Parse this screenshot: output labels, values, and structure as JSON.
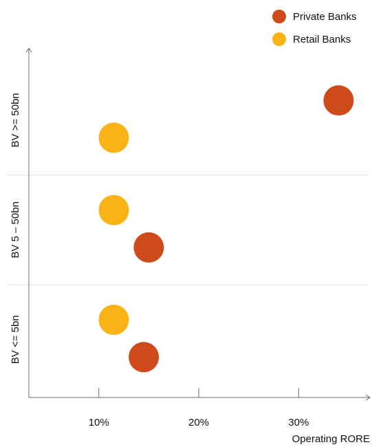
{
  "chart_data": {
    "type": "scatter",
    "title": "",
    "xlabel": "Operating RORE",
    "ylabel": "",
    "x_ticks": [
      {
        "value": 10,
        "label": "10%"
      },
      {
        "value": 20,
        "label": "20%"
      },
      {
        "value": 30,
        "label": "30%"
      }
    ],
    "xlim": [
      3,
      37
    ],
    "grid": false,
    "legend_position": "top-right",
    "bands": [
      {
        "label": "BV >= 50bn"
      },
      {
        "label": "BV 5 – 50bn"
      },
      {
        "label": "BV <= 5bn"
      }
    ],
    "series": [
      {
        "name": "Private Banks",
        "color": "#cf4a1a",
        "points": [
          {
            "x": 34,
            "band": "BV >= 50bn",
            "level": "upper"
          },
          {
            "x": 15,
            "band": "BV 5 – 50bn",
            "level": "lower"
          },
          {
            "x": 14.5,
            "band": "BV <= 5bn",
            "level": "lower"
          }
        ]
      },
      {
        "name": "Retail Banks",
        "color": "#f9b316",
        "points": [
          {
            "x": 11.5,
            "band": "BV >= 50bn",
            "level": "lower"
          },
          {
            "x": 11.5,
            "band": "BV 5 – 50bn",
            "level": "upper"
          },
          {
            "x": 11.5,
            "band": "BV <= 5bn",
            "level": "upper"
          }
        ]
      }
    ]
  }
}
